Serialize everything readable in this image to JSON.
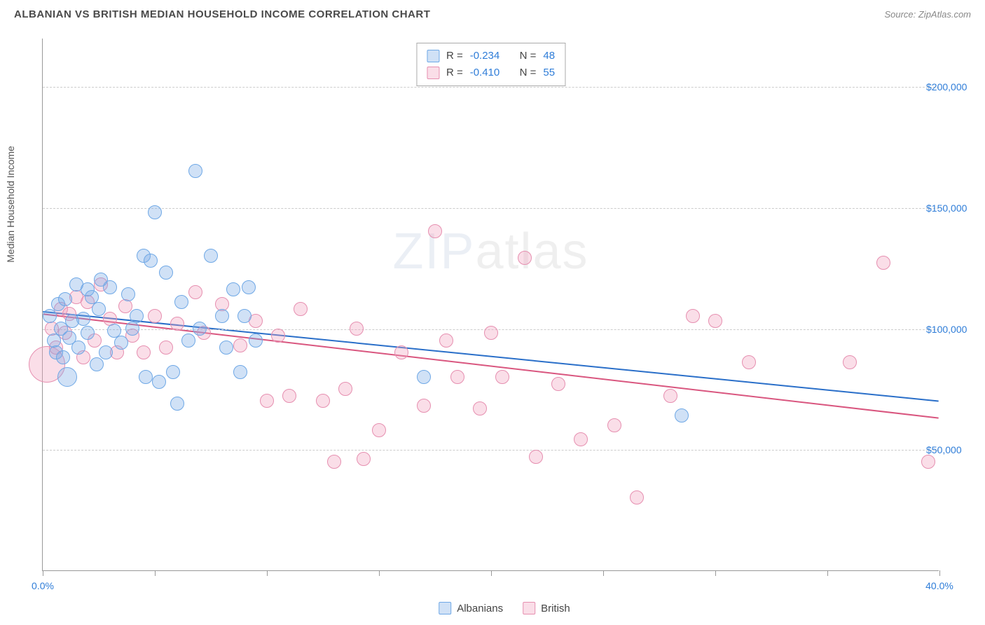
{
  "title": "ALBANIAN VS BRITISH MEDIAN HOUSEHOLD INCOME CORRELATION CHART",
  "source": "Source: ZipAtlas.com",
  "watermark_a": "ZIP",
  "watermark_b": "atlas",
  "ylabel": "Median Household Income",
  "xlim": [
    0,
    40
  ],
  "ylim": [
    0,
    220000
  ],
  "x_ticks": [
    0,
    5,
    10,
    15,
    20,
    25,
    30,
    35,
    40
  ],
  "x_tick_labels": {
    "0": "0.0%",
    "40": "40.0%"
  },
  "y_gridlines": [
    50000,
    100000,
    150000,
    200000
  ],
  "y_tick_labels": {
    "50000": "$50,000",
    "100000": "$100,000",
    "150000": "$150,000",
    "200000": "$200,000"
  },
  "series": {
    "albanian": {
      "label": "Albanians",
      "fill": "rgba(120,170,230,0.35)",
      "stroke": "#6fa8e6",
      "corr_R": "-0.234",
      "corr_N": "48",
      "trend": {
        "y_at_x0": 107000,
        "y_at_xmax": 70000,
        "color": "#2a6fc9",
        "width": 2
      },
      "points": [
        [
          0.3,
          105000,
          10
        ],
        [
          0.5,
          95000,
          10
        ],
        [
          0.6,
          90000,
          10
        ],
        [
          0.7,
          110000,
          10
        ],
        [
          0.8,
          100000,
          10
        ],
        [
          0.9,
          88000,
          10
        ],
        [
          1.0,
          112000,
          10
        ],
        [
          1.1,
          80000,
          14
        ],
        [
          1.2,
          96000,
          10
        ],
        [
          1.3,
          103000,
          10
        ],
        [
          1.5,
          118000,
          10
        ],
        [
          1.6,
          92000,
          10
        ],
        [
          1.8,
          104000,
          10
        ],
        [
          2.0,
          116000,
          10
        ],
        [
          2.0,
          98000,
          10
        ],
        [
          2.2,
          113000,
          10
        ],
        [
          2.4,
          85000,
          10
        ],
        [
          2.5,
          108000,
          10
        ],
        [
          2.6,
          120000,
          10
        ],
        [
          2.8,
          90000,
          10
        ],
        [
          3.0,
          117000,
          10
        ],
        [
          3.2,
          99000,
          10
        ],
        [
          3.5,
          94000,
          10
        ],
        [
          3.8,
          114000,
          10
        ],
        [
          4.0,
          100000,
          10
        ],
        [
          4.2,
          105000,
          10
        ],
        [
          4.5,
          130000,
          10
        ],
        [
          4.6,
          80000,
          10
        ],
        [
          4.8,
          128000,
          10
        ],
        [
          5.0,
          148000,
          10
        ],
        [
          5.2,
          78000,
          10
        ],
        [
          5.5,
          123000,
          10
        ],
        [
          5.8,
          82000,
          10
        ],
        [
          6.0,
          69000,
          10
        ],
        [
          6.2,
          111000,
          10
        ],
        [
          6.5,
          95000,
          10
        ],
        [
          6.8,
          165000,
          10
        ],
        [
          7.0,
          100000,
          10
        ],
        [
          7.5,
          130000,
          10
        ],
        [
          8.0,
          105000,
          10
        ],
        [
          8.2,
          92000,
          10
        ],
        [
          8.5,
          116000,
          10
        ],
        [
          8.8,
          82000,
          10
        ],
        [
          9.0,
          105000,
          10
        ],
        [
          9.2,
          117000,
          10
        ],
        [
          9.5,
          95000,
          10
        ],
        [
          17.0,
          80000,
          10
        ],
        [
          28.5,
          64000,
          10
        ]
      ]
    },
    "british": {
      "label": "British",
      "fill": "rgba(240,160,190,0.35)",
      "stroke": "#e68fb0",
      "corr_R": "-0.410",
      "corr_N": "55",
      "trend": {
        "y_at_x0": 106000,
        "y_at_xmax": 63000,
        "color": "#d9567f",
        "width": 2
      },
      "points": [
        [
          0.2,
          85000,
          26
        ],
        [
          0.4,
          100000,
          10
        ],
        [
          0.6,
          92000,
          10
        ],
        [
          0.8,
          108000,
          10
        ],
        [
          1.0,
          98000,
          10
        ],
        [
          1.2,
          106000,
          10
        ],
        [
          1.5,
          113000,
          10
        ],
        [
          1.8,
          88000,
          10
        ],
        [
          2.0,
          111000,
          10
        ],
        [
          2.3,
          95000,
          10
        ],
        [
          2.6,
          118000,
          10
        ],
        [
          3.0,
          104000,
          10
        ],
        [
          3.3,
          90000,
          10
        ],
        [
          3.7,
          109000,
          10
        ],
        [
          4.0,
          97000,
          10
        ],
        [
          4.5,
          90000,
          10
        ],
        [
          5.0,
          105000,
          10
        ],
        [
          5.5,
          92000,
          10
        ],
        [
          6.0,
          102000,
          10
        ],
        [
          6.8,
          115000,
          10
        ],
        [
          7.2,
          98000,
          10
        ],
        [
          8.0,
          110000,
          10
        ],
        [
          8.8,
          93000,
          10
        ],
        [
          9.5,
          103000,
          10
        ],
        [
          10.0,
          70000,
          10
        ],
        [
          10.5,
          97000,
          10
        ],
        [
          11.0,
          72000,
          10
        ],
        [
          11.5,
          108000,
          10
        ],
        [
          12.5,
          70000,
          10
        ],
        [
          13.0,
          45000,
          10
        ],
        [
          13.5,
          75000,
          10
        ],
        [
          14.0,
          100000,
          10
        ],
        [
          14.3,
          46000,
          10
        ],
        [
          15.0,
          58000,
          10
        ],
        [
          16.0,
          90000,
          10
        ],
        [
          17.0,
          68000,
          10
        ],
        [
          17.5,
          140000,
          10
        ],
        [
          18.0,
          95000,
          10
        ],
        [
          18.5,
          80000,
          10
        ],
        [
          19.5,
          67000,
          10
        ],
        [
          20.0,
          98000,
          10
        ],
        [
          20.5,
          80000,
          10
        ],
        [
          21.5,
          129000,
          10
        ],
        [
          22.0,
          47000,
          10
        ],
        [
          23.0,
          77000,
          10
        ],
        [
          24.0,
          54000,
          10
        ],
        [
          25.5,
          60000,
          10
        ],
        [
          26.5,
          30000,
          10
        ],
        [
          28.0,
          72000,
          10
        ],
        [
          29.0,
          105000,
          10
        ],
        [
          30.0,
          103000,
          10
        ],
        [
          31.5,
          86000,
          10
        ],
        [
          36.0,
          86000,
          10
        ],
        [
          37.5,
          127000,
          10
        ],
        [
          39.5,
          45000,
          10
        ]
      ]
    }
  },
  "legend_r_label": "R =",
  "legend_n_label": "N ="
}
